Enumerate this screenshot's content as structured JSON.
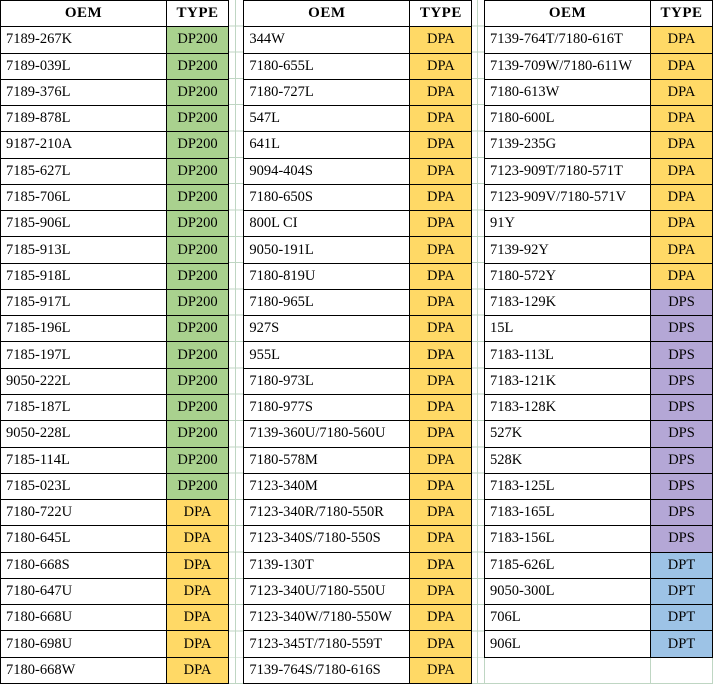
{
  "type_colors": {
    "DP200": "#a9d18e",
    "DPA": "#ffd966",
    "DPS": "#b4a7d6",
    "DPT": "#9dc3e6"
  },
  "gridline_color": "#bfd6c3",
  "border_color": "#000000",
  "background_color": "#ffffff",
  "tables": [
    {
      "headers": {
        "oem": "OEM",
        "type": "TYPE"
      },
      "trailing_empty_rows": 0,
      "rows": [
        {
          "oem": "7189-267K",
          "type": "DP200"
        },
        {
          "oem": "7189-039L",
          "type": "DP200"
        },
        {
          "oem": "7189-376L",
          "type": "DP200"
        },
        {
          "oem": "7189-878L",
          "type": "DP200"
        },
        {
          "oem": "9187-210A",
          "type": "DP200"
        },
        {
          "oem": "7185-627L",
          "type": "DP200"
        },
        {
          "oem": "7185-706L",
          "type": "DP200"
        },
        {
          "oem": "7185-906L",
          "type": "DP200"
        },
        {
          "oem": "7185-913L",
          "type": "DP200"
        },
        {
          "oem": "7185-918L",
          "type": "DP200"
        },
        {
          "oem": "7185-917L",
          "type": "DP200"
        },
        {
          "oem": "7185-196L",
          "type": "DP200"
        },
        {
          "oem": "7185-197L",
          "type": "DP200"
        },
        {
          "oem": "9050-222L",
          "type": "DP200"
        },
        {
          "oem": "7185-187L",
          "type": "DP200"
        },
        {
          "oem": "9050-228L",
          "type": "DP200"
        },
        {
          "oem": "7185-114L",
          "type": "DP200"
        },
        {
          "oem": "7185-023L",
          "type": "DP200"
        },
        {
          "oem": "7180-722U",
          "type": "DPA"
        },
        {
          "oem": "7180-645L",
          "type": "DPA"
        },
        {
          "oem": "7180-668S",
          "type": "DPA"
        },
        {
          "oem": "7180-647U",
          "type": "DPA"
        },
        {
          "oem": "7180-668U",
          "type": "DPA"
        },
        {
          "oem": "7180-698U",
          "type": "DPA"
        },
        {
          "oem": "7180-668W",
          "type": "DPA"
        }
      ]
    },
    {
      "headers": {
        "oem": "OEM",
        "type": "TYPE"
      },
      "trailing_empty_rows": 0,
      "rows": [
        {
          "oem": "344W",
          "type": "DPA"
        },
        {
          "oem": "7180-655L",
          "type": "DPA"
        },
        {
          "oem": "7180-727L",
          "type": "DPA"
        },
        {
          "oem": "547L",
          "type": "DPA"
        },
        {
          "oem": "641L",
          "type": "DPA"
        },
        {
          "oem": "9094-404S",
          "type": "DPA"
        },
        {
          "oem": "7180-650S",
          "type": "DPA"
        },
        {
          "oem": "800L CI",
          "type": "DPA"
        },
        {
          "oem": "9050-191L",
          "type": "DPA"
        },
        {
          "oem": "7180-819U",
          "type": "DPA"
        },
        {
          "oem": "7180-965L",
          "type": "DPA"
        },
        {
          "oem": "927S",
          "type": "DPA"
        },
        {
          "oem": "955L",
          "type": "DPA"
        },
        {
          "oem": "7180-973L",
          "type": "DPA"
        },
        {
          "oem": "7180-977S",
          "type": "DPA"
        },
        {
          "oem": "7139-360U/7180-560U",
          "type": "DPA"
        },
        {
          "oem": "7180-578M",
          "type": "DPA"
        },
        {
          "oem": "7123-340M",
          "type": "DPA"
        },
        {
          "oem": "7123-340R/7180-550R",
          "type": "DPA"
        },
        {
          "oem": "7123-340S/7180-550S",
          "type": "DPA"
        },
        {
          "oem": "7139-130T",
          "type": "DPA"
        },
        {
          "oem": "7123-340U/7180-550U",
          "type": "DPA"
        },
        {
          "oem": "7123-340W/7180-550W",
          "type": "DPA"
        },
        {
          "oem": "7123-345T/7180-559T",
          "type": "DPA"
        },
        {
          "oem": "7139-764S/7180-616S",
          "type": "DPA"
        }
      ]
    },
    {
      "headers": {
        "oem": "OEM",
        "type": "TYPE"
      },
      "trailing_empty_rows": 1,
      "rows": [
        {
          "oem": "7139-764T/7180-616T",
          "type": "DPA"
        },
        {
          "oem": "7139-709W/7180-611W",
          "type": "DPA"
        },
        {
          "oem": "7180-613W",
          "type": "DPA"
        },
        {
          "oem": "7180-600L",
          "type": "DPA"
        },
        {
          "oem": "7139-235G",
          "type": "DPA"
        },
        {
          "oem": "7123-909T/7180-571T",
          "type": "DPA"
        },
        {
          "oem": "7123-909V/7180-571V",
          "type": "DPA"
        },
        {
          "oem": "91Y",
          "type": "DPA"
        },
        {
          "oem": "7139-92Y",
          "type": "DPA"
        },
        {
          "oem": "7180-572Y",
          "type": "DPA"
        },
        {
          "oem": "7183-129K",
          "type": "DPS"
        },
        {
          "oem": "15L",
          "type": "DPS"
        },
        {
          "oem": "7183-113L",
          "type": "DPS"
        },
        {
          "oem": "7183-121K",
          "type": "DPS"
        },
        {
          "oem": "7183-128K",
          "type": "DPS"
        },
        {
          "oem": "527K",
          "type": "DPS"
        },
        {
          "oem": "528K",
          "type": "DPS"
        },
        {
          "oem": "7183-125L",
          "type": "DPS"
        },
        {
          "oem": "7183-165L",
          "type": "DPS"
        },
        {
          "oem": "7183-156L",
          "type": "DPS"
        },
        {
          "oem": "7185-626L",
          "type": "DPT"
        },
        {
          "oem": "9050-300L",
          "type": "DPT"
        },
        {
          "oem": "706L",
          "type": "DPT"
        },
        {
          "oem": "906L",
          "type": "DPT"
        }
      ]
    }
  ]
}
